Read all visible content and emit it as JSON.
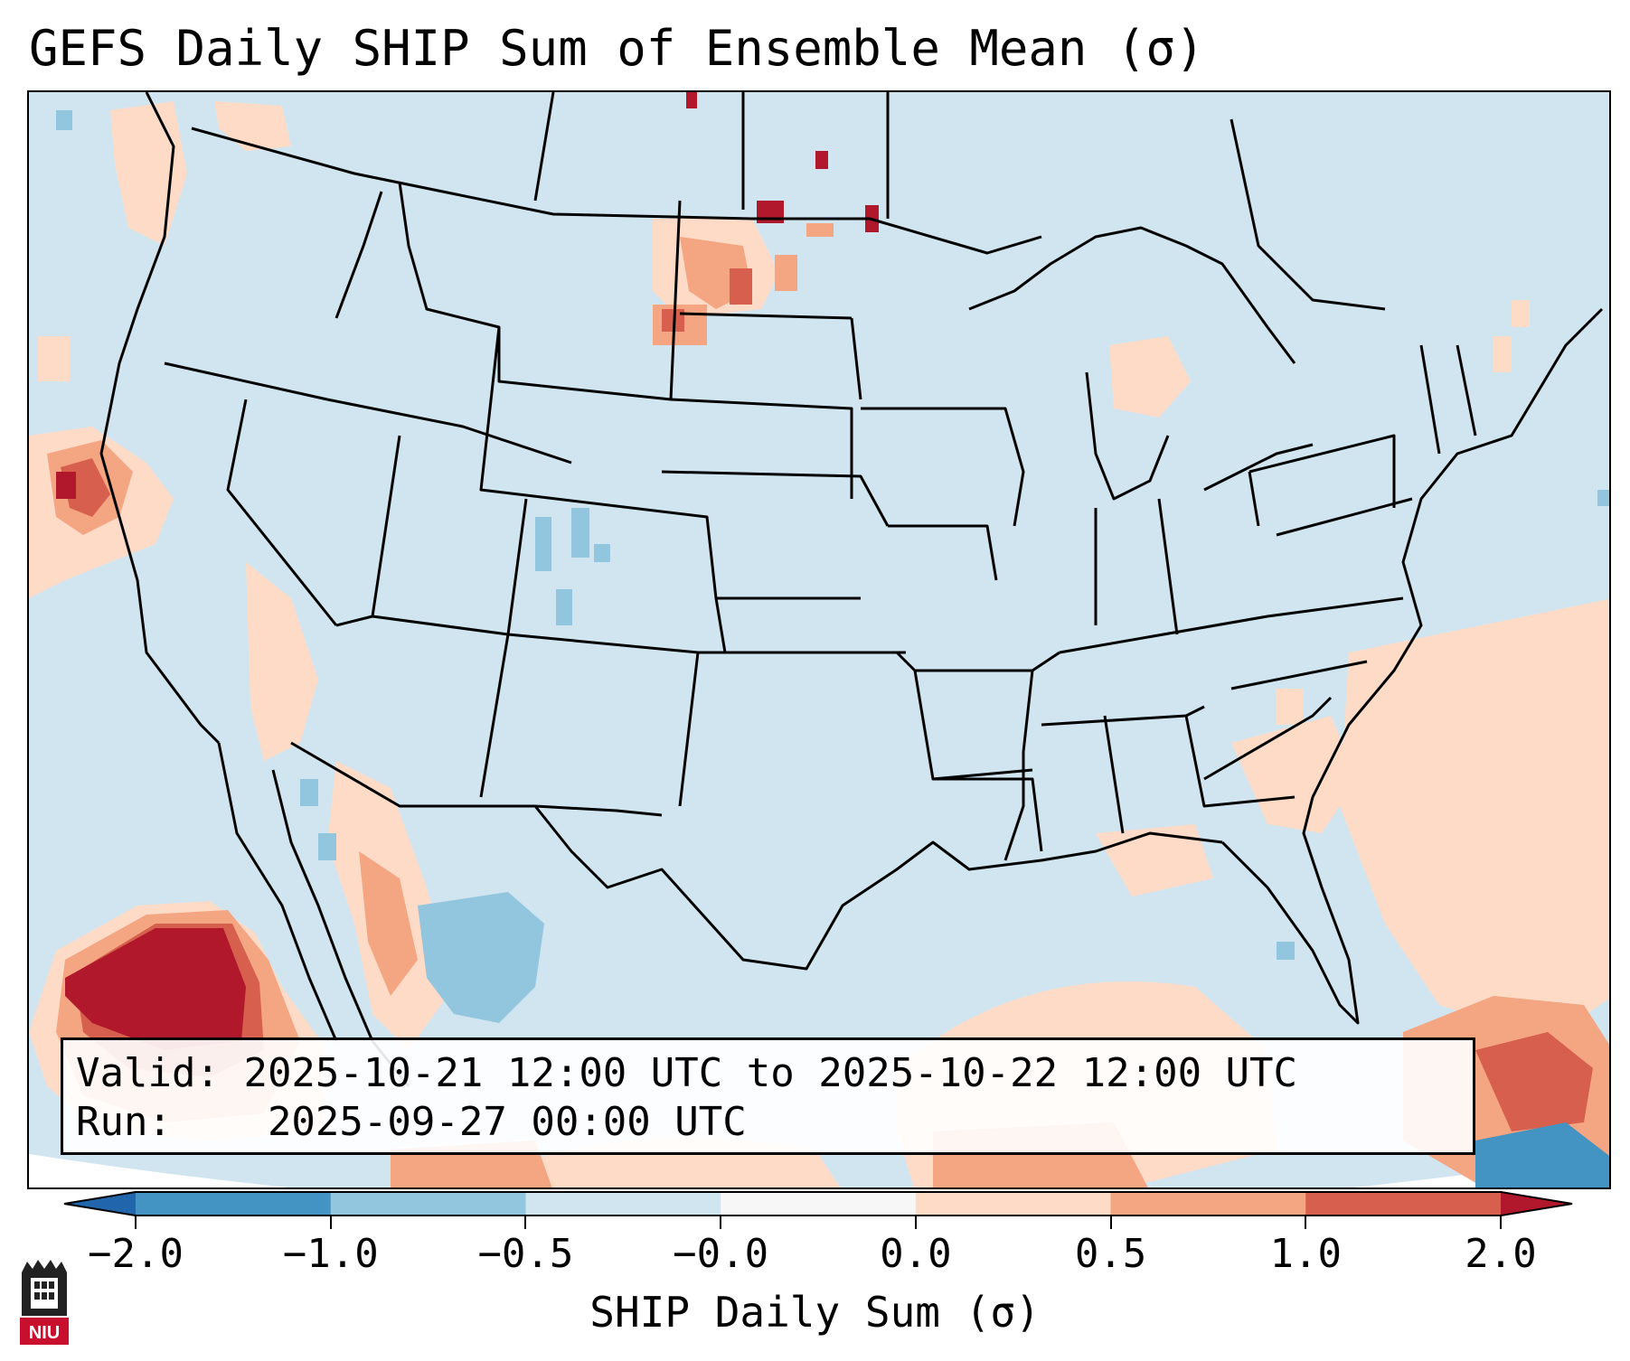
{
  "title": "GEFS Daily SHIP Sum of Ensemble Mean (σ)",
  "info": {
    "valid_label": "Valid:",
    "valid_value": "2025-10-21 12:00 UTC to 2025-10-22 12:00 UTC",
    "run_label": "Run:",
    "run_value": "2025-09-27 00:00 UTC"
  },
  "colorbar": {
    "label": "SHIP Daily Sum (σ)",
    "ticks": [
      "−2.0",
      "−1.0",
      "−0.5",
      "−0.0",
      "0.0",
      "0.5",
      "1.0",
      "2.0"
    ],
    "bins": [
      {
        "range": "< -2.0",
        "color": "#2166ac"
      },
      {
        "range": "-2.0 to -1.0",
        "color": "#4393c3"
      },
      {
        "range": "-1.0 to -0.5",
        "color": "#92c5de"
      },
      {
        "range": "-0.5 to -0.0",
        "color": "#d1e5f0"
      },
      {
        "range": "-0.0 to 0.0",
        "color": "#f7f7f7"
      },
      {
        "range": "0.0 to 0.5",
        "color": "#fddbc7"
      },
      {
        "range": "0.5 to 1.0",
        "color": "#f4a582"
      },
      {
        "range": "1.0 to 2.0",
        "color": "#d6604d"
      },
      {
        "range": "> 2.0",
        "color": "#b2182b"
      }
    ]
  },
  "map": {
    "domain": "CONUS",
    "background_color": "#d1e5f0",
    "boundary_color": "#000000"
  },
  "logo": {
    "text": "NIU",
    "color": "#c8102e"
  }
}
